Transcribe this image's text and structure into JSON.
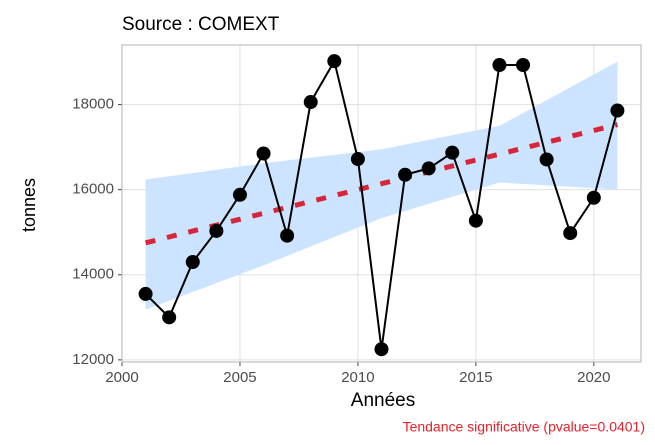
{
  "chart_data": {
    "type": "line",
    "title": "Source : COMEXT",
    "xlabel": "Années",
    "ylabel": "tonnes",
    "annotation": "Tendance significative (pvalue=0.0401)",
    "annotation_color": "#e8202a",
    "x": [
      2001,
      2002,
      2003,
      2004,
      2005,
      2006,
      2007,
      2008,
      2009,
      2010,
      2011,
      2012,
      2013,
      2014,
      2015,
      2016,
      2017,
      2018,
      2019,
      2020,
      2021
    ],
    "values": [
      13550,
      13000,
      14300,
      15030,
      15880,
      16850,
      14920,
      18060,
      19020,
      16720,
      12250,
      16350,
      16500,
      16870,
      15270,
      18930,
      18930,
      16710,
      14980,
      15810,
      17860
    ],
    "color": "#000000",
    "trend": {
      "x": [
        2001,
        2021
      ],
      "values": [
        14750,
        17530
      ],
      "color": "#d6273a"
    },
    "ribbon": {
      "x": [
        2001,
        2006,
        2011,
        2016,
        2021
      ],
      "lower": [
        13180,
        14220,
        15330,
        16170,
        16000
      ],
      "upper": [
        16240,
        16620,
        16950,
        17500,
        19010
      ],
      "color": "#cce4ff"
    },
    "xlim": [
      2000,
      2022
    ],
    "xticks": [
      2000,
      2005,
      2010,
      2015,
      2020
    ],
    "ylim": [
      11950,
      19400
    ],
    "yticks": [
      12000,
      14000,
      16000,
      18000
    ],
    "grid": true
  }
}
